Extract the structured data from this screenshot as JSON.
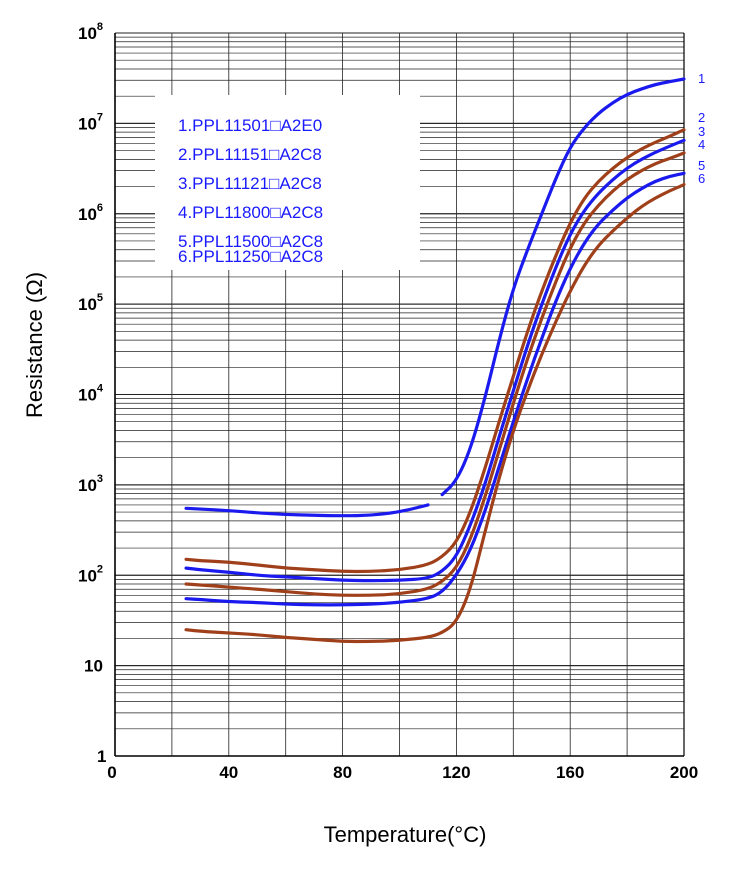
{
  "chart_data": {
    "type": "line",
    "title": "",
    "xlabel": "Temperature(°C)",
    "ylabel": "Resistance (Ω)",
    "xlim": [
      0,
      200
    ],
    "ylim_log10": [
      0,
      8
    ],
    "y_scale": "log",
    "x_ticks": [
      "0",
      "40",
      "80",
      "120",
      "160",
      "200"
    ],
    "x_tick_values": [
      0,
      40,
      80,
      120,
      160,
      200
    ],
    "y_ticks": [
      {
        "value": 1,
        "base": "1",
        "exp": ""
      },
      {
        "value": 10,
        "base": "10",
        "exp": ""
      },
      {
        "value": 100,
        "base": "10",
        "exp": "2"
      },
      {
        "value": 1000,
        "base": "10",
        "exp": "3"
      },
      {
        "value": 10000,
        "base": "10",
        "exp": "4"
      },
      {
        "value": 100000,
        "base": "10",
        "exp": "5"
      },
      {
        "value": 1000000,
        "base": "10",
        "exp": "6"
      },
      {
        "value": 10000000,
        "base": "10",
        "exp": "7"
      },
      {
        "value": 100000000,
        "base": "10",
        "exp": "8"
      }
    ],
    "grid": true,
    "legend": {
      "placement": "top-left",
      "entries": [
        "1.PPL11501□A2E0",
        "2.PPL11151□A2C8",
        "3.PPL11121□A2C8",
        "4.PPL11800□A2C8",
        "5.PPL11500□A2C8",
        "6.PPL11250□A2C8"
      ]
    },
    "series": [
      {
        "name": "1",
        "color": "#1a1aee",
        "x": [
          25,
          30,
          40,
          50,
          60,
          70,
          80,
          90,
          100,
          110,
          115,
          120,
          125,
          130,
          135,
          140,
          145,
          150,
          155,
          160,
          165,
          170,
          175,
          180,
          185,
          190,
          195,
          200
        ],
        "y": [
          550,
          540,
          520,
          490,
          470,
          460,
          455,
          460,
          500,
          600,
          780,
          1100,
          2500,
          9000,
          40000,
          150000,
          400000,
          1000000,
          2500000,
          5500000,
          9000000,
          13000000,
          17000000,
          21000000,
          24000000,
          27000000,
          29000000,
          31000000
        ],
        "dash_gap": [
          110,
          115
        ]
      },
      {
        "name": "2",
        "color": "#a0401a",
        "x": [
          25,
          30,
          40,
          50,
          60,
          70,
          80,
          90,
          100,
          110,
          115,
          120,
          125,
          130,
          135,
          140,
          145,
          150,
          155,
          160,
          165,
          170,
          175,
          180,
          185,
          190,
          195,
          200
        ],
        "y": [
          150,
          145,
          140,
          130,
          120,
          115,
          110,
          110,
          115,
          130,
          160,
          230,
          500,
          1500,
          5000,
          16000,
          50000,
          140000,
          350000,
          800000,
          1500000,
          2300000,
          3200000,
          4200000,
          5200000,
          6200000,
          7200000,
          8500000
        ]
      },
      {
        "name": "3",
        "color": "#1a1aee",
        "x": [
          25,
          30,
          40,
          50,
          60,
          70,
          80,
          90,
          100,
          110,
          115,
          120,
          125,
          130,
          135,
          140,
          145,
          150,
          155,
          160,
          165,
          170,
          175,
          180,
          185,
          190,
          195,
          200
        ],
        "y": [
          120,
          115,
          108,
          100,
          96,
          92,
          88,
          87,
          88,
          92,
          110,
          160,
          360,
          1000,
          3400,
          11000,
          35000,
          100000,
          260000,
          600000,
          1100000,
          1700000,
          2400000,
          3200000,
          4000000,
          4800000,
          5600000,
          6500000
        ]
      },
      {
        "name": "4",
        "color": "#a0401a",
        "x": [
          25,
          30,
          40,
          50,
          60,
          70,
          80,
          90,
          100,
          110,
          115,
          120,
          125,
          130,
          135,
          140,
          145,
          150,
          155,
          160,
          165,
          170,
          175,
          180,
          185,
          190,
          195,
          200
        ],
        "y": [
          80,
          78,
          74,
          70,
          66,
          62,
          60,
          60,
          62,
          70,
          85,
          120,
          250,
          720,
          2400,
          8000,
          25000,
          70000,
          180000,
          420000,
          800000,
          1250000,
          1800000,
          2400000,
          3000000,
          3600000,
          4100000,
          4700000
        ]
      },
      {
        "name": "5",
        "color": "#1a1aee",
        "x": [
          25,
          30,
          40,
          50,
          60,
          70,
          80,
          90,
          100,
          110,
          115,
          120,
          125,
          130,
          135,
          140,
          145,
          150,
          155,
          160,
          165,
          170,
          175,
          180,
          185,
          190,
          195,
          200
        ],
        "y": [
          55,
          54,
          51,
          50,
          48,
          47,
          47,
          48,
          50,
          55,
          65,
          100,
          190,
          500,
          1600,
          5000,
          15000,
          42000,
          110000,
          250000,
          480000,
          780000,
          1100000,
          1500000,
          1900000,
          2300000,
          2600000,
          2800000
        ]
      },
      {
        "name": "6",
        "color": "#a0401a",
        "x": [
          25,
          30,
          40,
          50,
          60,
          70,
          80,
          90,
          100,
          110,
          115,
          120,
          125,
          130,
          135,
          140,
          145,
          150,
          155,
          160,
          165,
          170,
          175,
          180,
          185,
          190,
          195,
          200
        ],
        "y": [
          25,
          24,
          23,
          22,
          20.5,
          19.5,
          18.5,
          18.5,
          19,
          20.5,
          23,
          30,
          70,
          300,
          1200,
          4000,
          11000,
          28000,
          65000,
          140000,
          270000,
          450000,
          650000,
          900000,
          1200000,
          1500000,
          1800000,
          2100000
        ]
      }
    ],
    "end_labels": [
      "1",
      "2",
      "3",
      "4",
      "5",
      "6"
    ]
  }
}
